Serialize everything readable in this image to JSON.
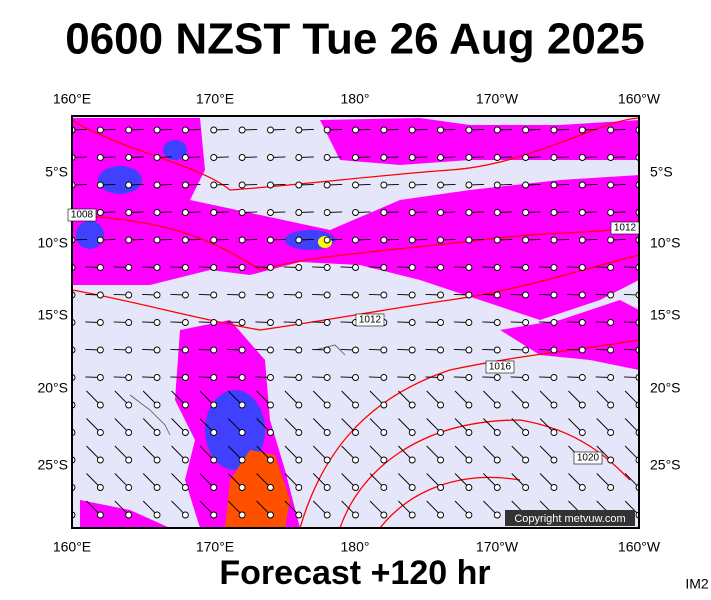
{
  "title": "0600 NZST Tue 26 Aug 2025",
  "top_axis_labels": [
    "160°E",
    "170°E",
    "180°",
    "170°W",
    "160°W"
  ],
  "bottom_axis_labels": [
    "160°E",
    "170°E",
    "180°",
    "170°W",
    "160°W"
  ],
  "left_axis_labels": [
    "5°S",
    "10°S",
    "15°S",
    "20°S",
    "25°S"
  ],
  "right_axis_labels": [
    "5°S",
    "10°S",
    "15°S",
    "20°S",
    "25°S"
  ],
  "isobar_labels": [
    "1008",
    "1012",
    "1012",
    "1016",
    "1020"
  ],
  "copyright": "Copyright metvuw.com",
  "footer": "Forecast +120 hr",
  "image_id": "IM2"
}
